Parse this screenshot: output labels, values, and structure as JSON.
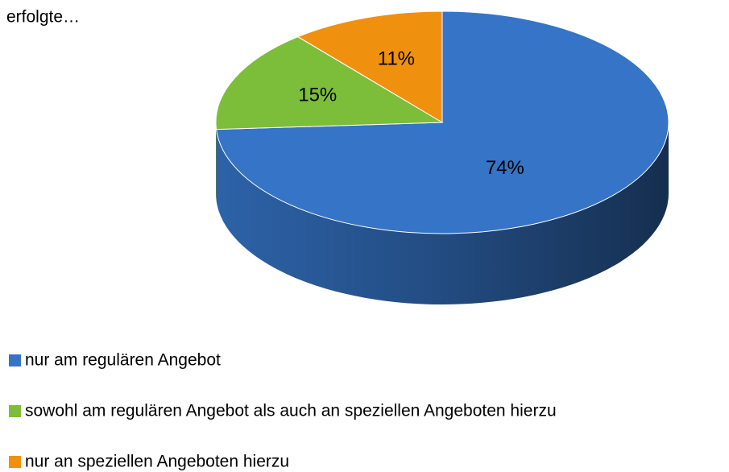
{
  "chart_data": {
    "type": "pie3d",
    "title": "erfolgte…",
    "categories": [
      "nur am regulären Angebot",
      "sowohl am regulären Angebot als auch an speziellen Angeboten hierzu",
      "nur an speziellen Angeboten hierzu"
    ],
    "values": [
      74,
      15,
      11
    ],
    "value_labels": [
      "74%",
      "15%",
      "11%"
    ],
    "colors": [
      "#3574c6",
      "#7cbd3a",
      "#f0900f"
    ],
    "legend": "bottom"
  }
}
